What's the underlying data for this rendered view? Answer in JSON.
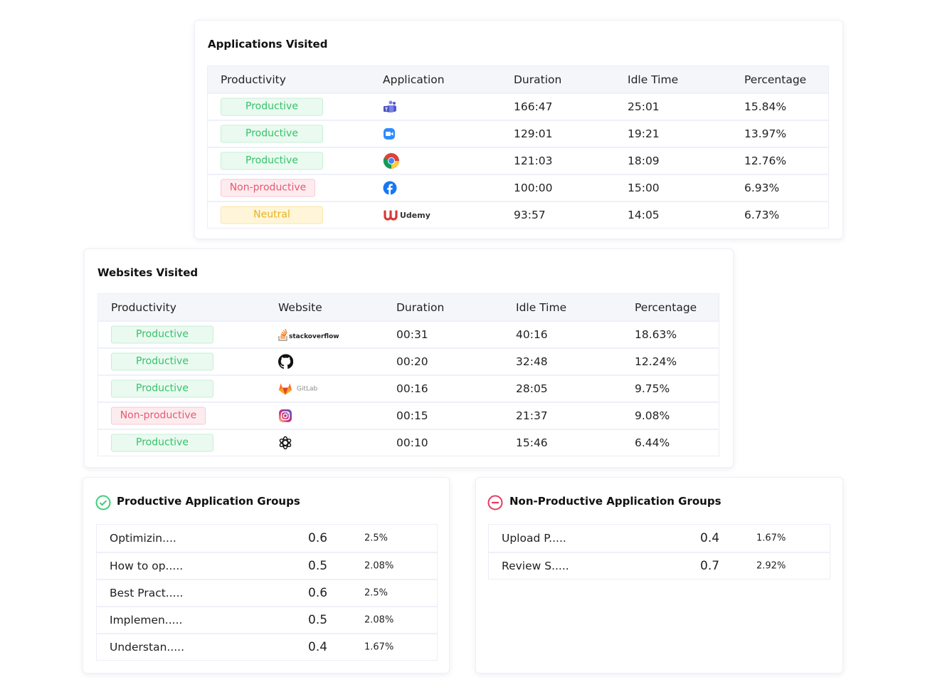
{
  "applications": {
    "title": "Applications Visited",
    "columns": [
      "Productivity",
      "Application",
      "Duration",
      "Idle Time",
      "Percentage"
    ],
    "rows": [
      {
        "productivity": "Productive",
        "status": "productive",
        "app_icon": "teams-icon",
        "duration": "166:47",
        "idle": "25:01",
        "percentage": "15.84%"
      },
      {
        "productivity": "Productive",
        "status": "productive",
        "app_icon": "zoom-icon",
        "duration": "129:01",
        "idle": "19:21",
        "percentage": "13.97%"
      },
      {
        "productivity": "Productive",
        "status": "productive",
        "app_icon": "chrome-icon",
        "duration": "121:03",
        "idle": "18:09",
        "percentage": "12.76%"
      },
      {
        "productivity": "Non-productive",
        "status": "non-productive",
        "app_icon": "facebook-icon",
        "duration": "100:00",
        "idle": "15:00",
        "percentage": "6.93%"
      },
      {
        "productivity": "Neutral",
        "status": "neutral",
        "app_icon": "udemy-icon",
        "logo_text": "Udemy",
        "duration": "93:57",
        "idle": "14:05",
        "percentage": "6.73%"
      }
    ]
  },
  "websites": {
    "title": "Websites Visited",
    "columns": [
      "Productivity",
      "Website",
      "Duration",
      "Idle Time",
      "Percentage"
    ],
    "rows": [
      {
        "productivity": "Productive",
        "status": "productive",
        "app_icon": "stackoverflow-icon",
        "logo_text": "stackoverflow",
        "duration": "00:31",
        "idle": "40:16",
        "percentage": "18.63%"
      },
      {
        "productivity": "Productive",
        "status": "productive",
        "app_icon": "github-icon",
        "duration": "00:20",
        "idle": "32:48",
        "percentage": "12.24%"
      },
      {
        "productivity": "Productive",
        "status": "productive",
        "app_icon": "gitlab-icon",
        "logo_text": "GitLab",
        "duration": "00:16",
        "idle": "28:05",
        "percentage": "9.75%"
      },
      {
        "productivity": "Non-productive",
        "status": "non-productive",
        "app_icon": "instagram-icon",
        "duration": "00:15",
        "idle": "21:37",
        "percentage": "9.08%"
      },
      {
        "productivity": "Productive",
        "status": "productive",
        "app_icon": "openai-icon",
        "duration": "00:10",
        "idle": "15:46",
        "percentage": "6.44%"
      }
    ]
  },
  "productive_groups": {
    "title": "Productive Application Groups",
    "icon": "check-circle-icon",
    "color": "#3ecf7a",
    "rows": [
      {
        "name": "Optimizin....",
        "value": "0.6",
        "percentage": "2.5%"
      },
      {
        "name": "How to op.....",
        "value": "0.5",
        "percentage": "2.08%"
      },
      {
        "name": "Best Pract.....",
        "value": "0.6",
        "percentage": "2.5%"
      },
      {
        "name": "Implemen.....",
        "value": "0.5",
        "percentage": "2.08%"
      },
      {
        "name": "Understan.....",
        "value": "0.4",
        "percentage": "1.67%"
      }
    ]
  },
  "non_productive_groups": {
    "title": "Non-Productive Application Groups",
    "icon": "minus-circle-icon",
    "color": "#e63b62",
    "rows": [
      {
        "name": "Upload P.....",
        "value": "0.4",
        "percentage": "1.67%"
      },
      {
        "name": "Review S.....",
        "value": "0.7",
        "percentage": "2.92%"
      }
    ]
  }
}
